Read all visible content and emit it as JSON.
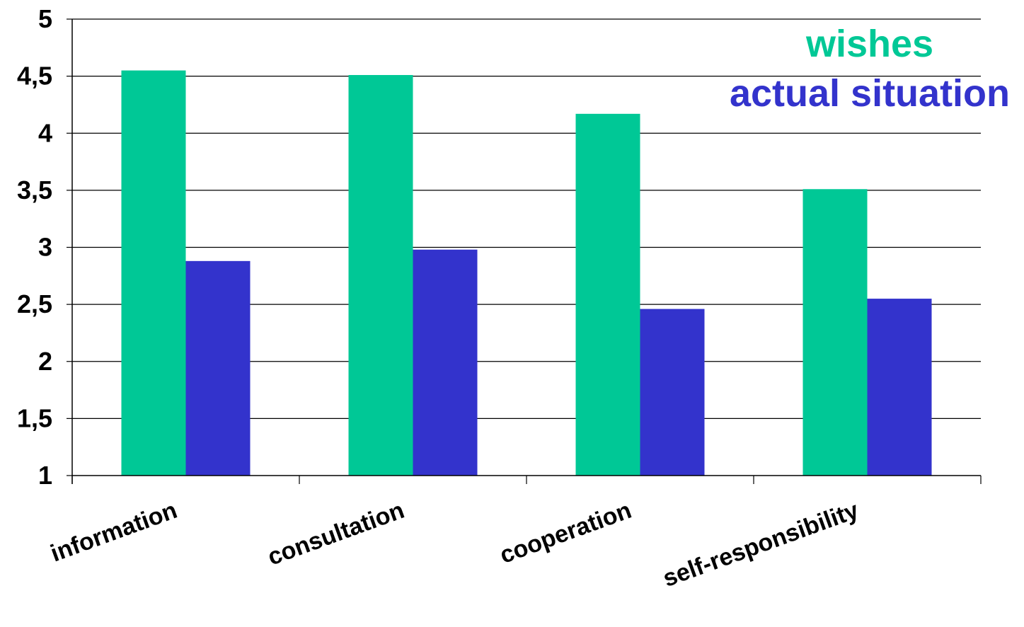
{
  "chart_data": {
    "type": "bar",
    "categories": [
      "information",
      "consultation",
      "cooperation",
      "self-responsibility"
    ],
    "series": [
      {
        "name": "wishes",
        "color": "#00C896",
        "values": [
          4.55,
          4.51,
          4.17,
          3.51
        ]
      },
      {
        "name": "actual situation",
        "color": "#3333CC",
        "values": [
          2.88,
          2.98,
          2.46,
          2.55
        ]
      }
    ],
    "y_ticks": [
      "1",
      "1,5",
      "2",
      "2,5",
      "3",
      "3,5",
      "4",
      "4,5",
      "5"
    ],
    "ylim": [
      1,
      5
    ],
    "grid": true,
    "legend_position": "top-right"
  }
}
